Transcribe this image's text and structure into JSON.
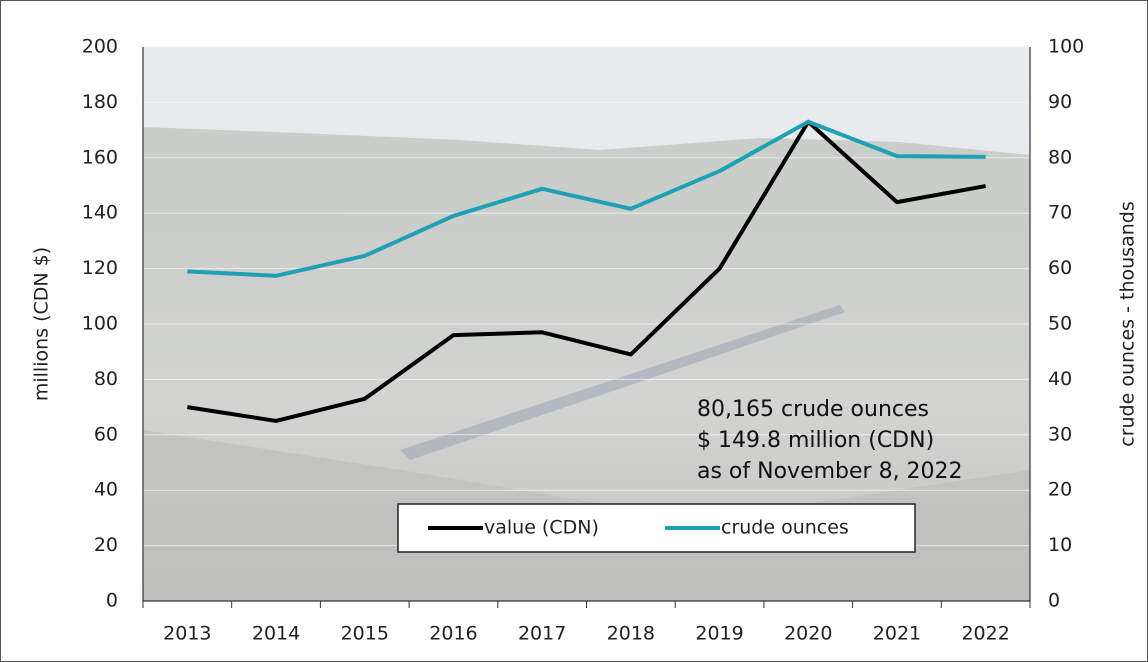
{
  "chart_data": {
    "type": "line",
    "categories": [
      "2013",
      "2014",
      "2015",
      "2016",
      "2017",
      "2018",
      "2019",
      "2020",
      "2021",
      "2022"
    ],
    "series": [
      {
        "name": "value (CDN)",
        "color": "#000000",
        "values": [
          70,
          65,
          73,
          96,
          97,
          89,
          120,
          173,
          144,
          149.8
        ]
      },
      {
        "name": "crude ounces",
        "color": "#1fa0b5",
        "axis": "y2",
        "values": [
          59.5,
          58.7,
          62.3,
          69.5,
          74.4,
          70.8,
          77.6,
          86.5,
          80.3,
          80.165
        ]
      }
    ],
    "ylabel": "millions (CDN $)",
    "y2label": "crude ounces - thousands",
    "ylim": [
      0,
      200
    ],
    "yticks": [
      0,
      20,
      40,
      60,
      80,
      100,
      120,
      140,
      160,
      180,
      200
    ],
    "y2lim": [
      0,
      100
    ],
    "y2ticks": [
      0,
      10,
      20,
      30,
      40,
      50,
      60,
      70,
      80,
      90,
      100
    ],
    "grid": true,
    "legend": "bottom",
    "annotations": [
      "80,165 crude ounces",
      "$ 149.8 million (CDN)",
      "as of November 8, 2022"
    ]
  }
}
